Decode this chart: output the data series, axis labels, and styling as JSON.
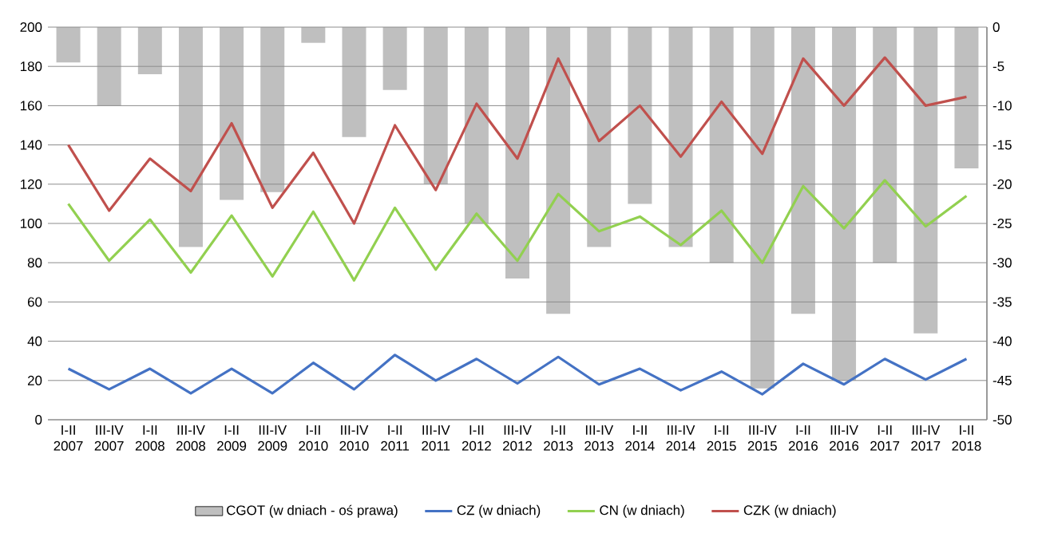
{
  "chart_data": {
    "type": "line",
    "categories": [
      "I-II 2007",
      "III-IV 2007",
      "I-II 2008",
      "III-IV 2008",
      "I-II 2009",
      "III-IV 2009",
      "I-II 2010",
      "III-IV 2010",
      "I-II 2011",
      "III-IV 2011",
      "I-II 2012",
      "III-IV 2012",
      "I-II 2013",
      "III-IV 2013",
      "I-II 2014",
      "III-IV 2014",
      "I-II 2015",
      "III-IV 2015",
      "I-II 2016",
      "III-IV 2016",
      "I-II 2017",
      "III-IV 2017",
      "I-II 2018"
    ],
    "series": [
      {
        "name": "CGOT (w dniach - oś prawa)",
        "type": "bar",
        "axis": "y2",
        "color": "#bfbfbf",
        "values": [
          -4.5,
          -10,
          -6,
          -28,
          -22,
          -21,
          -2,
          -14,
          -8,
          -20,
          -25,
          -32,
          -36.5,
          -28,
          -22.5,
          -28,
          -30,
          -46,
          -36.5,
          -45,
          -30,
          -39,
          -18
        ]
      },
      {
        "name": "CZ (w dniach)",
        "color": "#4472c4",
        "values": [
          26,
          15.5,
          26,
          13.5,
          26,
          13.5,
          29,
          15.5,
          33,
          20,
          31,
          18.5,
          32,
          18,
          26,
          15,
          24.5,
          13,
          28.5,
          18,
          31,
          20.5,
          31
        ]
      },
      {
        "name": "CN (w dniach)",
        "color": "#92d050",
        "values": [
          110,
          81,
          102,
          75,
          104,
          73,
          106,
          71,
          108,
          76.5,
          105,
          81,
          115,
          96,
          103.5,
          89,
          106.5,
          80,
          119,
          97.5,
          122,
          98.5,
          114
        ]
      },
      {
        "name": "CZK (w dniach)",
        "color": "#c0504d",
        "values": [
          140,
          106.5,
          133,
          116.5,
          151,
          108,
          136,
          100,
          150,
          117,
          161,
          133,
          184,
          142,
          160,
          134,
          162,
          135.5,
          184,
          160,
          184.5,
          160,
          164.5
        ]
      }
    ],
    "ylim": [
      0,
      200
    ],
    "yticks": [
      0,
      20,
      40,
      60,
      80,
      100,
      120,
      140,
      160,
      180,
      200
    ],
    "y2lim": [
      -50,
      0
    ],
    "y2ticks": [
      -50,
      -45,
      -40,
      -35,
      -30,
      -25,
      -20,
      -15,
      -10,
      -5,
      0
    ],
    "grid": "y",
    "legend": "bottom"
  }
}
